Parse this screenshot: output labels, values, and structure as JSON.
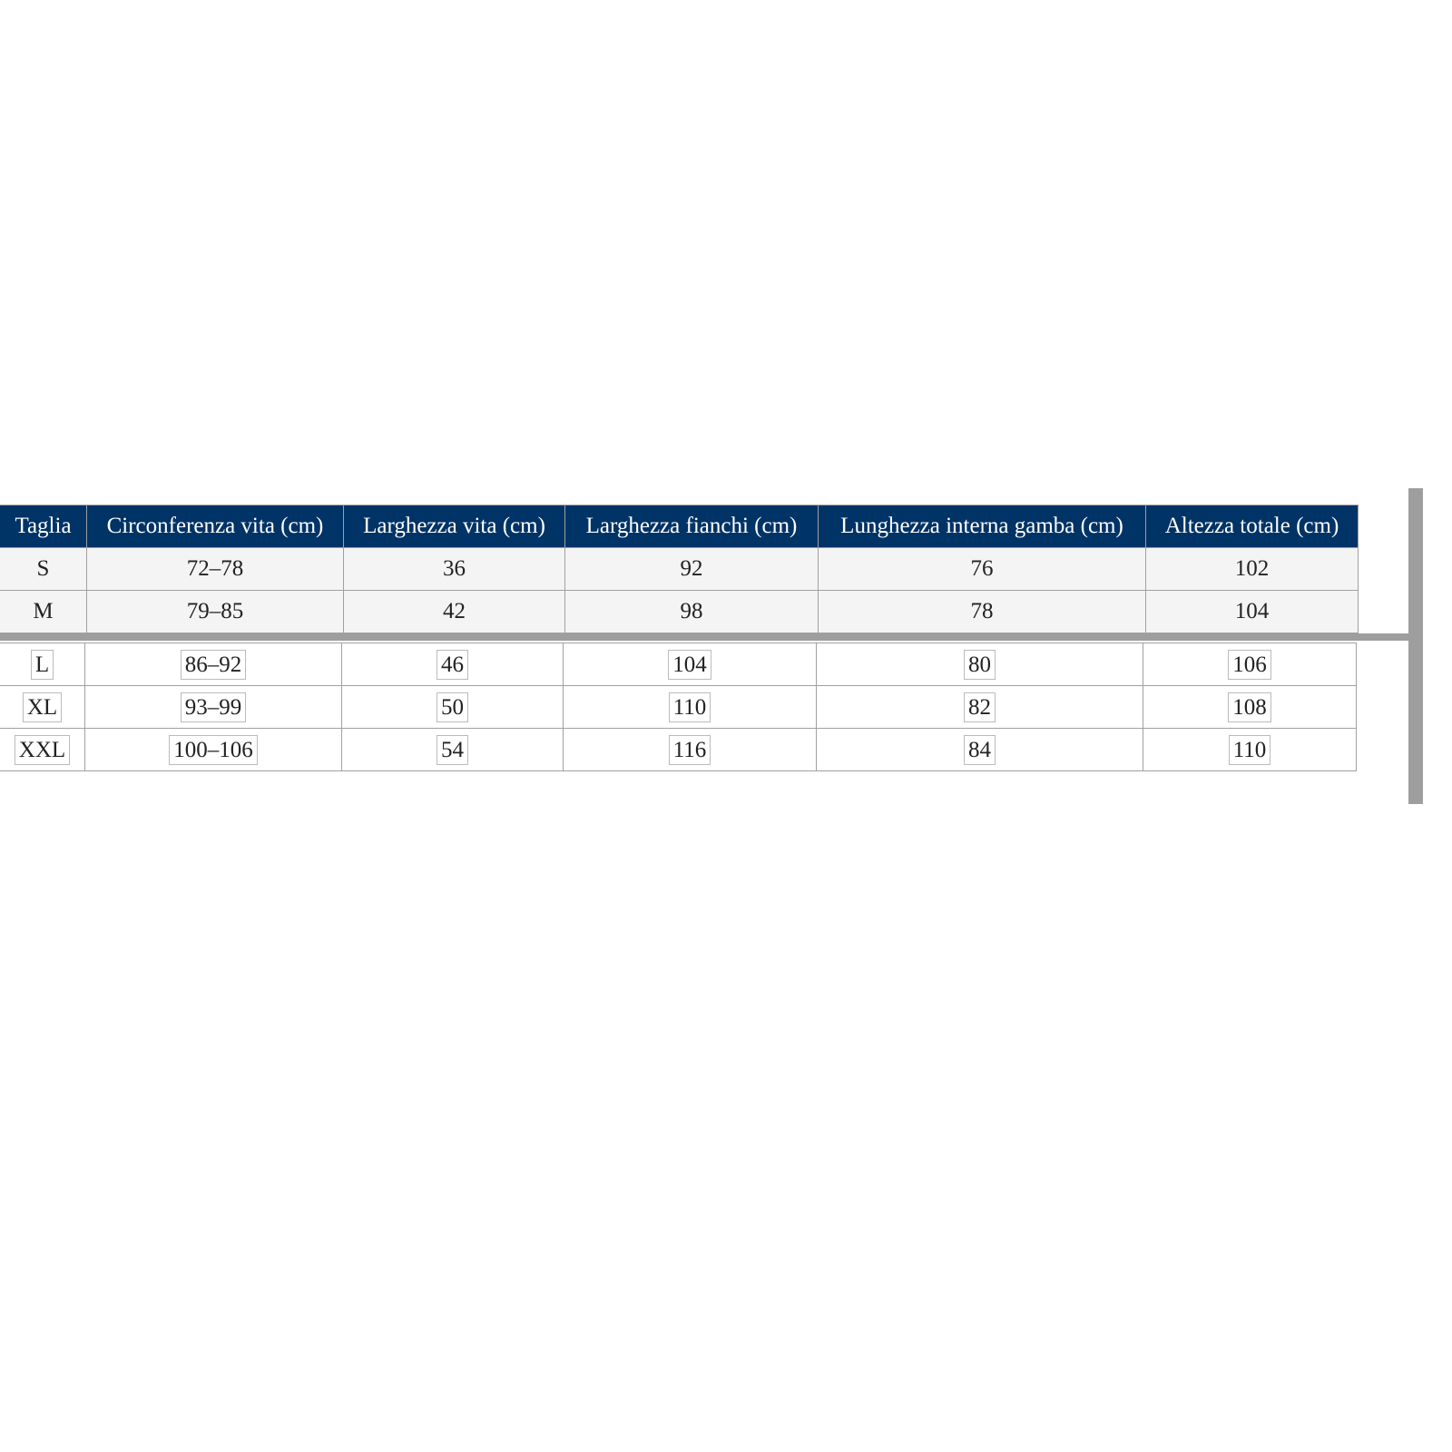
{
  "table": {
    "headers": [
      "Taglia",
      "Circonferenza vita (cm)",
      "Larghezza vita (cm)",
      "Larghezza fianchi (cm)",
      "Lunghezza interna gamba (cm)",
      "Altezza totale (cm)"
    ],
    "rows_top": [
      [
        "S",
        "72–78",
        "36",
        "92",
        "76",
        "102"
      ],
      [
        "M",
        "79–85",
        "42",
        "98",
        "78",
        "104"
      ]
    ],
    "rows_bottom": [
      [
        "L",
        "86–92",
        "46",
        "104",
        "80",
        "106"
      ],
      [
        "XL",
        "93–99",
        "50",
        "110",
        "82",
        "108"
      ],
      [
        "XXL",
        "100–106",
        "54",
        "116",
        "84",
        "110"
      ]
    ]
  },
  "colors": {
    "header_bg": "#003366",
    "header_text": "#ffffff",
    "row_bg": "#f4f4f4",
    "divider": "#9e9e9e"
  }
}
